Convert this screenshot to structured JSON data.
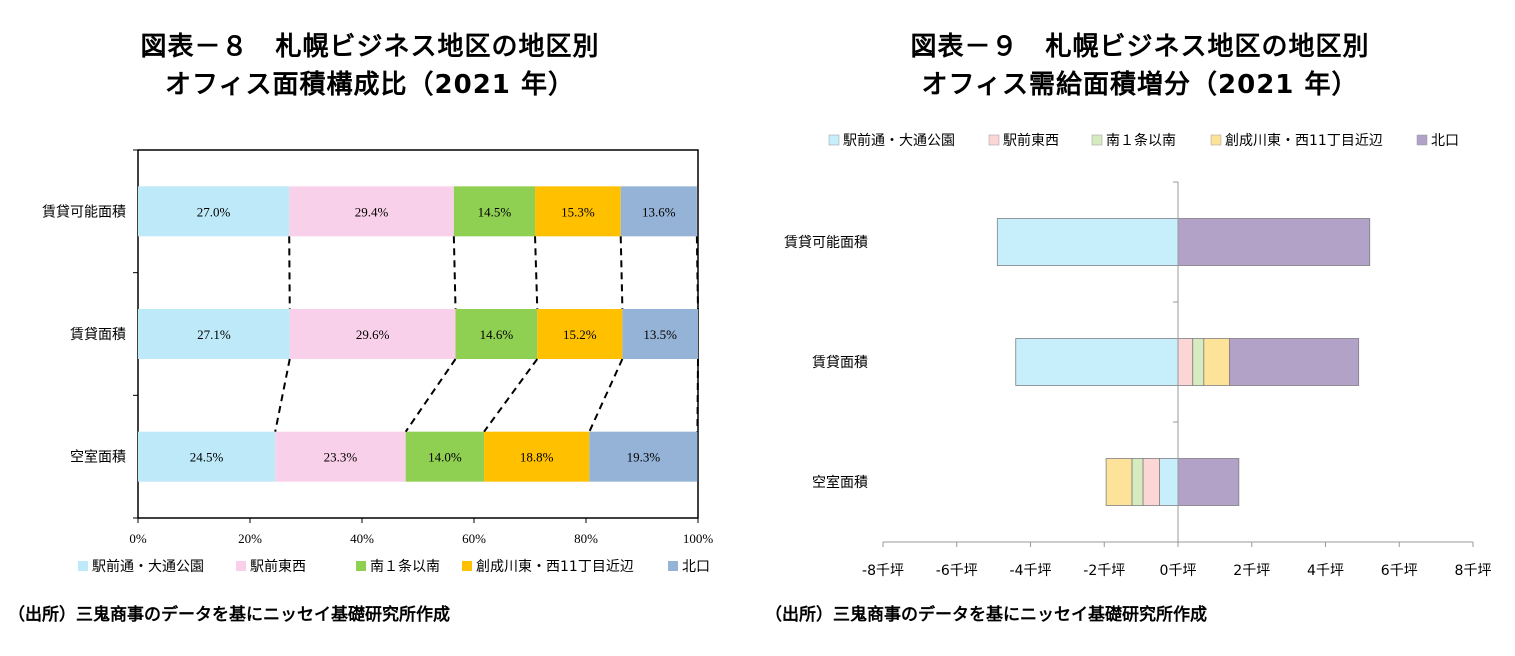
{
  "left": {
    "title_line1": "図表－８　札幌ビジネス地区の地区別",
    "title_line2": "オフィス面積構成比（2021 年）",
    "source": "（出所）三鬼商事のデータを基にニッセイ基礎研究所作成"
  },
  "right": {
    "title_line1": "図表－９　札幌ビジネス地区の地区別",
    "title_line2": "オフィス需給面積増分（2021 年）",
    "source": "（出所）三鬼商事のデータを基にニッセイ基礎研究所作成"
  },
  "colors": {
    "駅前通・大通公園": "#bde9f8",
    "駅前東西": "#f9d0ea",
    "南１条以南": "#8fd052",
    "創成川東・西11丁目近辺": "#ffc000",
    "北口": "#95b3d7"
  },
  "colors_right": {
    "駅前通・大通公園": "#c6eefb",
    "駅前東西": "#fcd5d5",
    "南１条以南": "#d6ebc0",
    "創成川東・西11丁目近辺": "#fde39a",
    "北口": "#b3a2c7"
  },
  "chart_data": [
    {
      "type": "bar",
      "orientation": "horizontal",
      "stacked": "percent",
      "categories": [
        "賃貸可能面積",
        "賃貸面積",
        "空室面積"
      ],
      "series": [
        {
          "name": "駅前通・大通公園",
          "values": [
            27.0,
            27.1,
            24.5
          ]
        },
        {
          "name": "駅前東西",
          "values": [
            29.4,
            29.6,
            23.3
          ]
        },
        {
          "name": "南１条以南",
          "values": [
            14.5,
            14.6,
            14.0
          ]
        },
        {
          "name": "創成川東・西11丁目近辺",
          "values": [
            15.3,
            15.2,
            18.8
          ]
        },
        {
          "name": "北口",
          "values": [
            13.6,
            13.5,
            19.3
          ]
        }
      ],
      "data_labels": [
        [
          "27.0%",
          "29.4%",
          "14.5%",
          "15.3%",
          "13.6%"
        ],
        [
          "27.1%",
          "29.6%",
          "14.6%",
          "15.2%",
          "13.5%"
        ],
        [
          "24.5%",
          "23.3%",
          "14.0%",
          "18.8%",
          "19.3%"
        ]
      ],
      "x_ticks": [
        "0%",
        "20%",
        "40%",
        "60%",
        "80%",
        "100%"
      ],
      "xlim": [
        0,
        100
      ],
      "legend_position": "bottom",
      "grid": false
    },
    {
      "type": "bar",
      "orientation": "horizontal",
      "stacked": "diverging",
      "categories": [
        "賃貸可能面積",
        "賃貸面積",
        "空室面積"
      ],
      "series": [
        {
          "name": "駅前通・大通公園",
          "values": [
            -4.9,
            -4.4,
            -0.5
          ]
        },
        {
          "name": "駅前東西",
          "values": [
            0.0,
            0.4,
            -0.45
          ]
        },
        {
          "name": "南１条以南",
          "values": [
            0.0,
            0.3,
            -0.3
          ]
        },
        {
          "name": "創成川東・西11丁目近辺",
          "values": [
            0.0,
            0.7,
            -0.7
          ]
        },
        {
          "name": "北口",
          "values": [
            5.2,
            3.5,
            1.65
          ]
        }
      ],
      "x_ticks": [
        "-8千坪",
        "-6千坪",
        "-4千坪",
        "-2千坪",
        "0千坪",
        "2千坪",
        "4千坪",
        "6千坪",
        "8千坪"
      ],
      "xlim": [
        -8,
        8
      ],
      "unit": "千坪",
      "legend_position": "top",
      "grid": false
    }
  ]
}
